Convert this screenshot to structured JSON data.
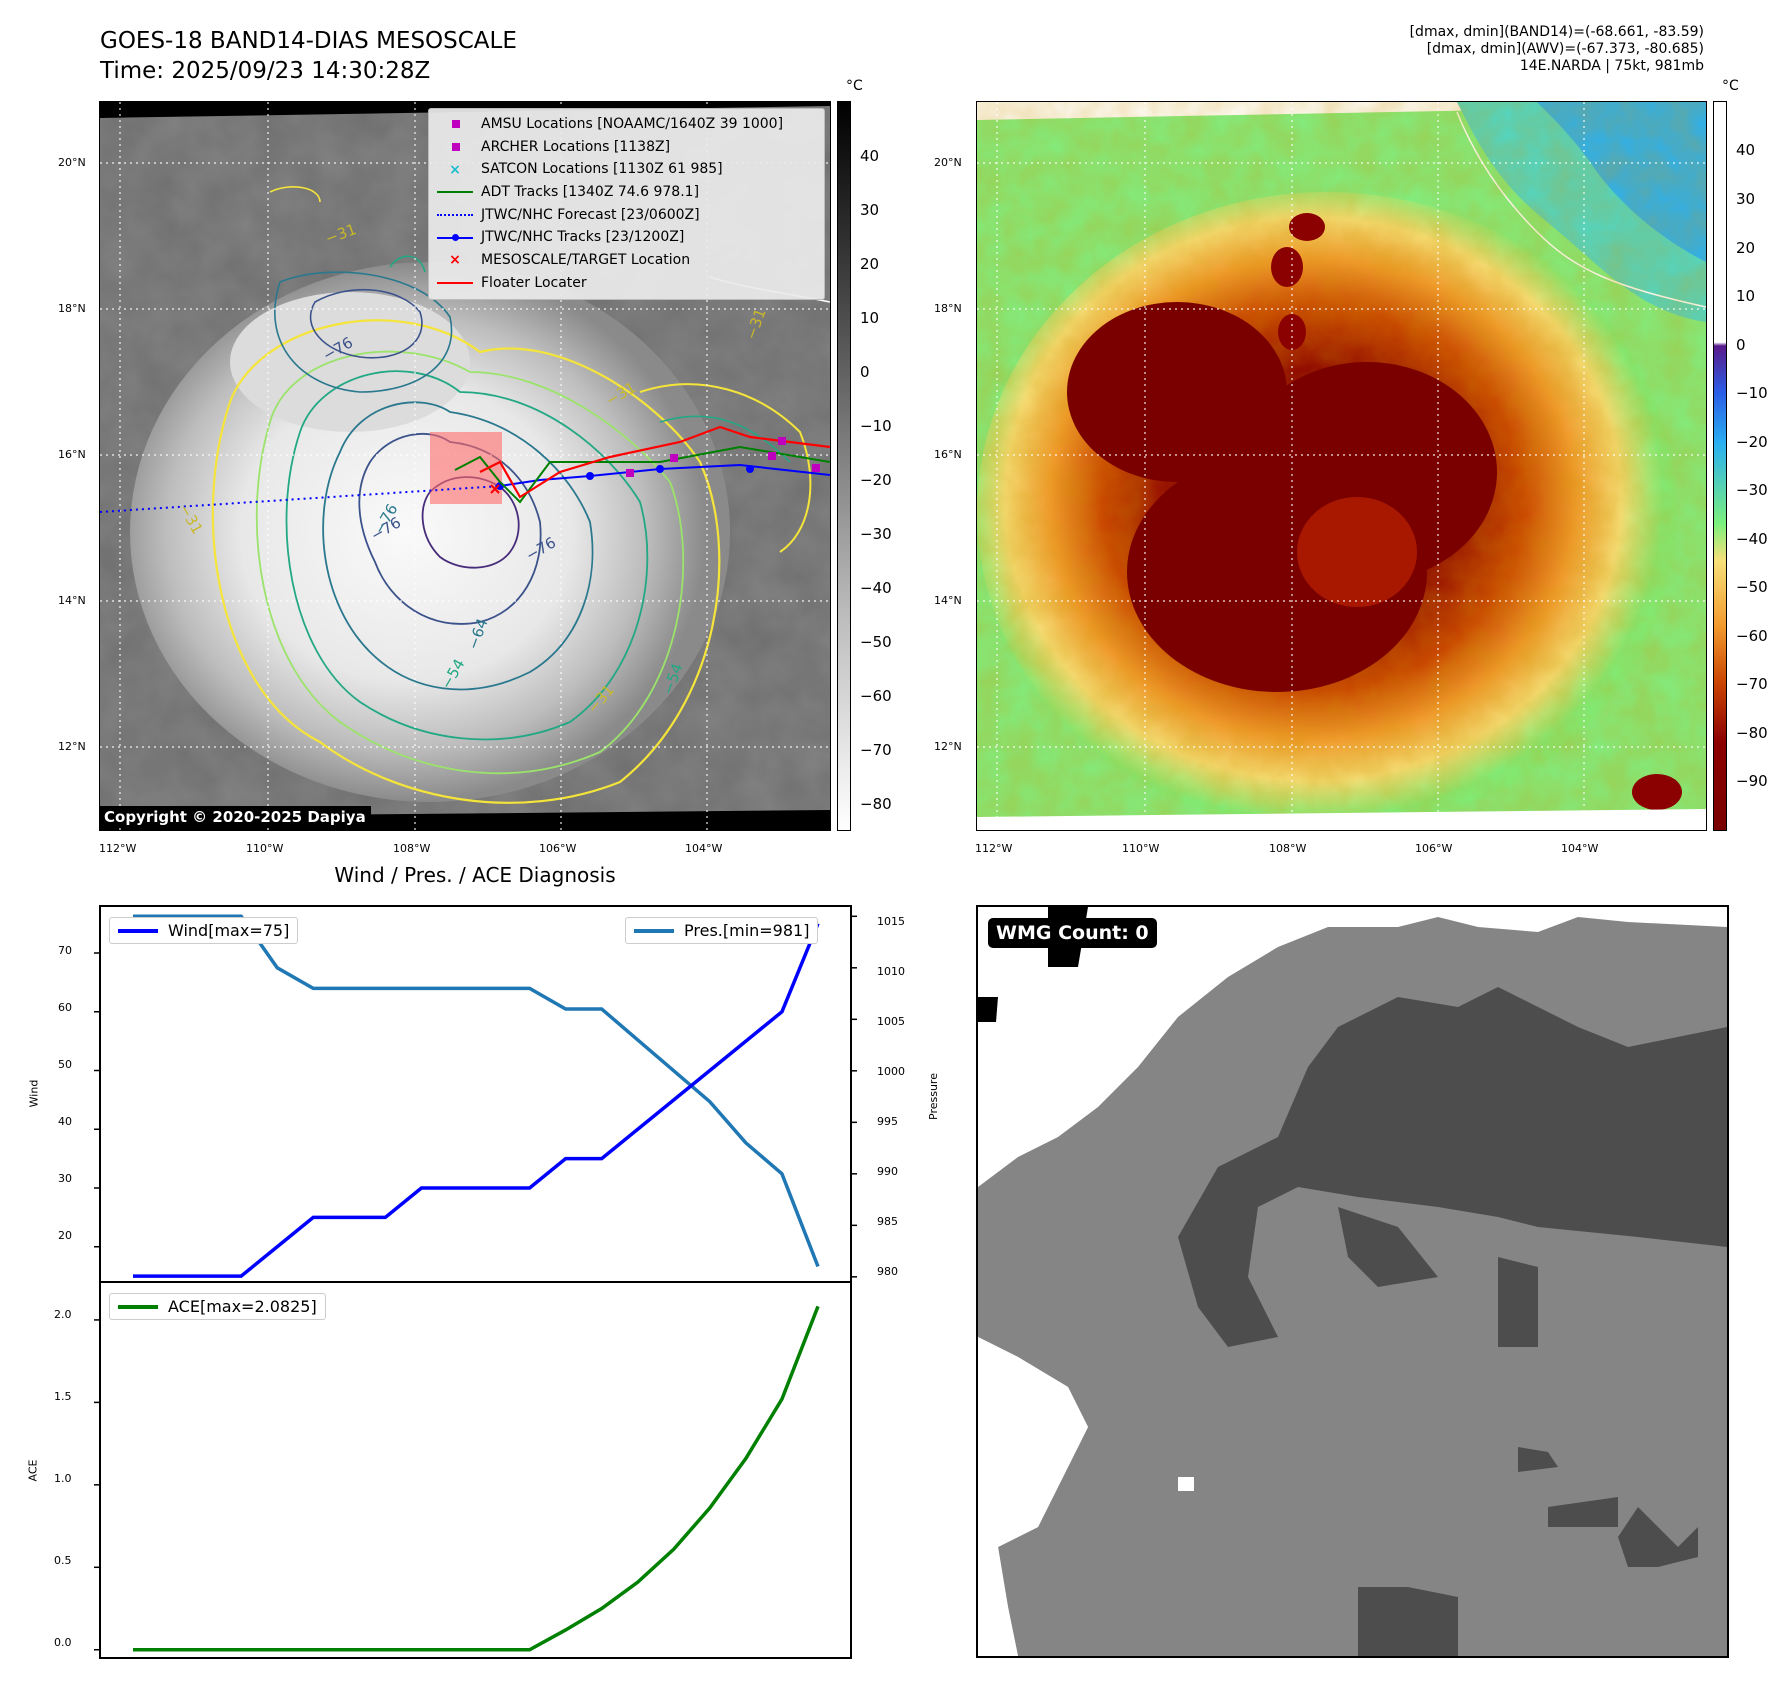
{
  "header": {
    "title_line1": "GOES-18 BAND14-DIAS MESOSCALE",
    "title_line2": "Time: 2025/09/23 14:30:28Z",
    "info_line1": "[dmax, dmin](BAND14)=(-68.661, -83.59)",
    "info_line2": "[dmax, dmin](AWV)=(-67.373, -80.685)",
    "info_line3": "14E.NARDA | 75kt, 981mb"
  },
  "map": {
    "lat_labels": [
      "20°N",
      "18°N",
      "16°N",
      "14°N",
      "12°N"
    ],
    "lon_labels": [
      "112°W",
      "110°W",
      "108°W",
      "106°W",
      "104°W"
    ],
    "copyright": "Copyright © 2020-2025 Dapiya",
    "colorbar_unit": "°C",
    "ir_colorbar_ticks": [
      "40",
      "30",
      "20",
      "10",
      "0",
      "−10",
      "−20",
      "−30",
      "−40",
      "−50",
      "−60",
      "−70",
      "−80"
    ],
    "awv_colorbar_ticks": [
      "40",
      "30",
      "20",
      "10",
      "0",
      "−10",
      "−20",
      "−30",
      "−40",
      "−50",
      "−60",
      "−70",
      "−80",
      "−90"
    ],
    "contour_labels": [
      "−76",
      "−76",
      "−76",
      "−76",
      "−64",
      "−54",
      "−54",
      "−31",
      "−31",
      "−31",
      "−31",
      "−31"
    ],
    "legend": [
      {
        "label": "AMSU Locations [NOAAMC/1640Z 39 1000]",
        "color": "#bf00bf",
        "kind": "square"
      },
      {
        "label": "ARCHER Locations [1138Z]",
        "color": "#bf00bf",
        "kind": "square"
      },
      {
        "label": "SATCON Locations [1130Z 61 985]",
        "color": "#17becf",
        "kind": "x"
      },
      {
        "label": "ADT Tracks [1340Z 74.6 978.1]",
        "color": "#008000",
        "kind": "line"
      },
      {
        "label": "JTWC/NHC Forecast [23/0600Z]",
        "color": "#0000ff",
        "kind": "dotted"
      },
      {
        "label": "JTWC/NHC Tracks [23/1200Z]",
        "color": "#0000ff",
        "kind": "linedot"
      },
      {
        "label": "MESOSCALE/TARGET Location",
        "color": "#ff0000",
        "kind": "x"
      },
      {
        "label": "Floater Locater",
        "color": "#ff0000",
        "kind": "line"
      }
    ]
  },
  "diag": {
    "title": "Wind / Pres. / ACE Diagnosis",
    "wind_legend": "Wind[max=75]",
    "pres_legend": "Pres.[min=981]",
    "ace_legend": "ACE[max=2.0825]",
    "wind_ylabel": "Wind",
    "pres_ylabel": "Pressure",
    "ace_ylabel": "ACE",
    "wind_ticks": [
      "70",
      "60",
      "50",
      "40",
      "30",
      "20"
    ],
    "pres_ticks": [
      "1015",
      "1010",
      "1005",
      "1000",
      "995",
      "990",
      "985",
      "980"
    ],
    "ace_ticks": [
      "2.0",
      "1.5",
      "1.0",
      "0.5",
      "0.0"
    ],
    "wmg_label": "WMG Count: 0"
  },
  "chart_data": [
    {
      "type": "line",
      "title": "Wind / Pres. / ACE Diagnosis",
      "x": [
        0,
        1,
        2,
        3,
        4,
        5,
        6,
        7,
        8,
        9,
        10,
        11,
        12,
        13,
        14,
        15,
        16,
        17,
        18,
        19
      ],
      "series": [
        {
          "name": "Wind[max=75]",
          "axis": "left",
          "color": "#0000ff",
          "values": [
            15,
            15,
            15,
            15,
            20,
            25,
            25,
            25,
            30,
            30,
            30,
            30,
            35,
            35,
            40,
            45,
            50,
            55,
            60,
            75
          ]
        },
        {
          "name": "Pres.[min=981]",
          "axis": "right",
          "color": "#1f77b4",
          "values": [
            1015,
            1015,
            1015,
            1015,
            1010,
            1008,
            1008,
            1008,
            1008,
            1008,
            1008,
            1008,
            1006,
            1006,
            1003,
            1000,
            997,
            993,
            990,
            981
          ]
        }
      ],
      "ylim_left": [
        14,
        78
      ],
      "ylim_right": [
        979.5,
        1016
      ]
    },
    {
      "type": "line",
      "x": [
        0,
        1,
        2,
        3,
        4,
        5,
        6,
        7,
        8,
        9,
        10,
        11,
        12,
        13,
        14,
        15,
        16,
        17,
        18,
        19
      ],
      "series": [
        {
          "name": "ACE[max=2.0825]",
          "color": "#008000",
          "values": [
            0,
            0,
            0,
            0,
            0,
            0,
            0,
            0,
            0,
            0,
            0,
            0,
            0.12,
            0.25,
            0.41,
            0.61,
            0.86,
            1.16,
            1.52,
            2.0825
          ]
        }
      ],
      "ylim": [
        -0.05,
        2.23
      ]
    }
  ]
}
